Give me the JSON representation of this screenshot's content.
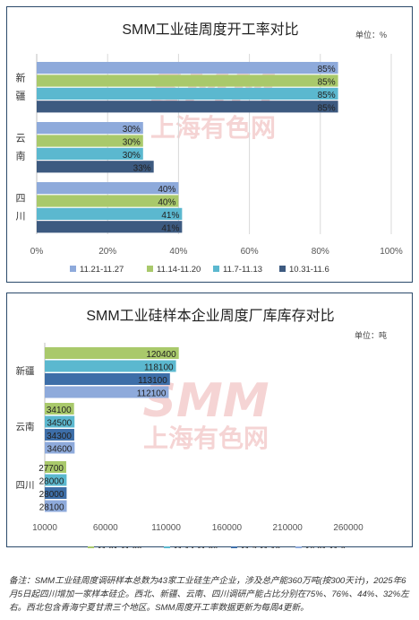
{
  "chart_data": [
    {
      "type": "bar",
      "orientation": "horizontal",
      "title": "SMM工业硅周度开工率对比",
      "unit": "单位：%",
      "categories": [
        "新疆",
        "云南",
        "四川"
      ],
      "series": [
        {
          "name": "11.21-11.27",
          "color": "#8eaadb",
          "values": [
            85,
            30,
            40
          ],
          "labels": [
            "85%",
            "30%",
            "40%"
          ]
        },
        {
          "name": "11.14-11.20",
          "color": "#a9c96b",
          "values": [
            85,
            30,
            40
          ],
          "labels": [
            "85%",
            "30%",
            "40%"
          ]
        },
        {
          "name": "11.7-11.13",
          "color": "#5bb8cf",
          "values": [
            85,
            30,
            41
          ],
          "labels": [
            "85%",
            "30%",
            "41%"
          ]
        },
        {
          "name": "10.31-11.6",
          "color": "#3d5a80",
          "values": [
            85,
            33,
            41
          ],
          "labels": [
            "85%",
            "33%",
            "41%"
          ]
        }
      ],
      "xlim": [
        0,
        100
      ],
      "xticks": [
        "0%",
        "20%",
        "40%",
        "60%",
        "80%",
        "100%"
      ],
      "grid": true,
      "legend": "bottom"
    },
    {
      "type": "bar",
      "orientation": "horizontal",
      "title": "SMM工业硅样本企业周度厂库库存对比",
      "unit": "单位：吨",
      "categories": [
        "新疆",
        "云南",
        "四川"
      ],
      "series": [
        {
          "name": "11.21-11.28",
          "color": "#a9c96b",
          "values": [
            120400,
            34100,
            27700
          ],
          "labels": [
            "120400",
            "34100",
            "27700"
          ]
        },
        {
          "name": "11.14-11.20",
          "color": "#5bb8cf",
          "values": [
            118100,
            34500,
            28000
          ],
          "labels": [
            "118100",
            "34500",
            "28000"
          ]
        },
        {
          "name": "11.7-11.13",
          "color": "#3d6ea8",
          "values": [
            113100,
            34300,
            28000
          ],
          "labels": [
            "113100",
            "34300",
            "28000"
          ]
        },
        {
          "name": "10.31-11.6",
          "color": "#8eaadb",
          "values": [
            112100,
            34600,
            28100
          ],
          "labels": [
            "112100",
            "34600",
            "28100"
          ]
        }
      ],
      "xlim": [
        10000,
        260000
      ],
      "xticks": [
        "10000",
        "60000",
        "110000",
        "160000",
        "210000",
        "260000"
      ],
      "grid": false,
      "legend": "bottom"
    }
  ],
  "watermark": {
    "latin": "SMM",
    "cjk": "上海有色网"
  },
  "note": "备注：SMM工业硅周度调研样本总数为43家工业硅生产企业，涉及总产能360万吨(按300天计)，2025年6月5日起四川增加一家样本硅企。西北、新疆、云南、四川调研产能占比分别在75%、76%、44%、32%左右。西北包含青海宁夏甘肃三个地区。SMM周度开工率数据更新为每周4更新。"
}
